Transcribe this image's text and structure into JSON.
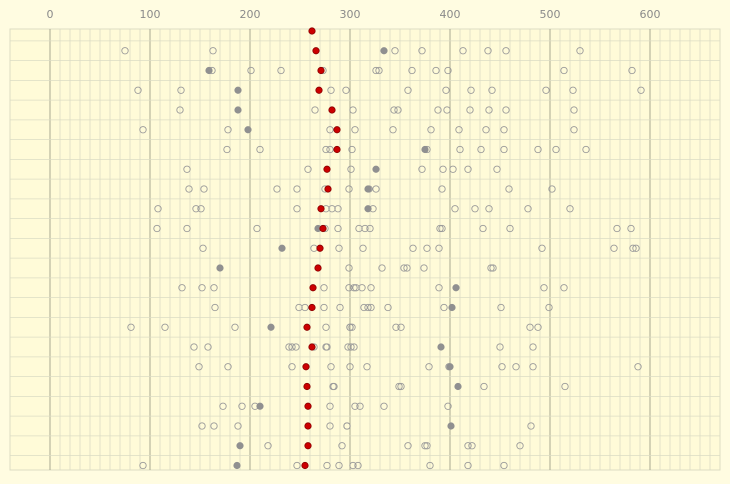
{
  "chart_data": {
    "type": "scatter",
    "title": "",
    "xlabel": "",
    "ylabel": "",
    "x_ticks": [
      "0",
      "100",
      "200",
      "300",
      "400",
      "500",
      "600"
    ],
    "xlim": [
      -8,
      678
    ],
    "grid": true,
    "row_count": 23,
    "colors": {
      "background": "#fffce1",
      "plot_background": "#fffbd8",
      "grid_minor": "#dcdcc4",
      "grid_major": "#a8a892",
      "tick_label": "#8a8a8a",
      "hollow_stroke": "#9a9a9a",
      "filled_gray": "#909090",
      "highlight": "#cc0000"
    },
    "series": [
      {
        "style": "highlight",
        "points": [
          [
            262,
            0
          ],
          [
            266,
            1
          ],
          [
            271,
            2
          ],
          [
            269,
            3
          ],
          [
            282,
            4
          ],
          [
            287,
            5
          ],
          [
            287,
            6
          ],
          [
            277,
            7
          ],
          [
            278,
            8
          ],
          [
            271,
            9
          ],
          [
            273,
            10
          ],
          [
            270,
            11
          ],
          [
            268,
            12
          ],
          [
            263,
            13
          ],
          [
            262,
            14
          ],
          [
            257,
            15
          ],
          [
            262,
            16
          ],
          [
            256,
            17
          ],
          [
            257,
            18
          ],
          [
            258,
            19
          ],
          [
            258,
            20
          ],
          [
            258,
            21
          ],
          [
            255,
            22
          ]
        ]
      },
      {
        "style": "gray",
        "points": [
          [
            334,
            1
          ],
          [
            159,
            2
          ],
          [
            188,
            3
          ],
          [
            188,
            4
          ],
          [
            198,
            5
          ],
          [
            375,
            6
          ],
          [
            326,
            7
          ],
          [
            318,
            8
          ],
          [
            318,
            9
          ],
          [
            268,
            10
          ],
          [
            232,
            11
          ],
          [
            170,
            12
          ],
          [
            406,
            13
          ],
          [
            402,
            14
          ],
          [
            221,
            15
          ],
          [
            391,
            16
          ],
          [
            400,
            17
          ],
          [
            408,
            18
          ],
          [
            210,
            19
          ],
          [
            401,
            20
          ],
          [
            190,
            21
          ],
          [
            187,
            22
          ]
        ]
      },
      {
        "style": "hollow",
        "points": [
          [
            75,
            1
          ],
          [
            163,
            1
          ],
          [
            345,
            1
          ],
          [
            372,
            1
          ],
          [
            413,
            1
          ],
          [
            438,
            1
          ],
          [
            456,
            1
          ],
          [
            530,
            1
          ],
          [
            162,
            2
          ],
          [
            201,
            2
          ],
          [
            231,
            2
          ],
          [
            273,
            2
          ],
          [
            326,
            2
          ],
          [
            329,
            2
          ],
          [
            362,
            2
          ],
          [
            386,
            2
          ],
          [
            398,
            2
          ],
          [
            514,
            2
          ],
          [
            582,
            2
          ],
          [
            88,
            3
          ],
          [
            131,
            3
          ],
          [
            281,
            3
          ],
          [
            296,
            3
          ],
          [
            358,
            3
          ],
          [
            396,
            3
          ],
          [
            421,
            3
          ],
          [
            442,
            3
          ],
          [
            496,
            3
          ],
          [
            523,
            3
          ],
          [
            591,
            3
          ],
          [
            130,
            4
          ],
          [
            265,
            4
          ],
          [
            303,
            4
          ],
          [
            344,
            4
          ],
          [
            348,
            4
          ],
          [
            388,
            4
          ],
          [
            397,
            4
          ],
          [
            420,
            4
          ],
          [
            439,
            4
          ],
          [
            456,
            4
          ],
          [
            524,
            4
          ],
          [
            93,
            5
          ],
          [
            178,
            5
          ],
          [
            280,
            5
          ],
          [
            305,
            5
          ],
          [
            343,
            5
          ],
          [
            381,
            5
          ],
          [
            409,
            5
          ],
          [
            436,
            5
          ],
          [
            454,
            5
          ],
          [
            524,
            5
          ],
          [
            177,
            6
          ],
          [
            210,
            6
          ],
          [
            276,
            6
          ],
          [
            280,
            6
          ],
          [
            302,
            6
          ],
          [
            377,
            6
          ],
          [
            410,
            6
          ],
          [
            431,
            6
          ],
          [
            454,
            6
          ],
          [
            488,
            6
          ],
          [
            506,
            6
          ],
          [
            536,
            6
          ],
          [
            137,
            7
          ],
          [
            258,
            7
          ],
          [
            301,
            7
          ],
          [
            372,
            7
          ],
          [
            393,
            7
          ],
          [
            403,
            7
          ],
          [
            418,
            7
          ],
          [
            447,
            7
          ],
          [
            139,
            8
          ],
          [
            154,
            8
          ],
          [
            227,
            8
          ],
          [
            247,
            8
          ],
          [
            275,
            8
          ],
          [
            299,
            8
          ],
          [
            319,
            8
          ],
          [
            326,
            8
          ],
          [
            392,
            8
          ],
          [
            459,
            8
          ],
          [
            502,
            8
          ],
          [
            108,
            9
          ],
          [
            146,
            9
          ],
          [
            151,
            9
          ],
          [
            247,
            9
          ],
          [
            276,
            9
          ],
          [
            282,
            9
          ],
          [
            288,
            9
          ],
          [
            323,
            9
          ],
          [
            405,
            9
          ],
          [
            425,
            9
          ],
          [
            439,
            9
          ],
          [
            478,
            9
          ],
          [
            520,
            9
          ],
          [
            107,
            10
          ],
          [
            137,
            10
          ],
          [
            207,
            10
          ],
          [
            275,
            10
          ],
          [
            288,
            10
          ],
          [
            309,
            10
          ],
          [
            315,
            10
          ],
          [
            320,
            10
          ],
          [
            390,
            10
          ],
          [
            392,
            10
          ],
          [
            433,
            10
          ],
          [
            460,
            10
          ],
          [
            567,
            10
          ],
          [
            581,
            10
          ],
          [
            153,
            11
          ],
          [
            264,
            11
          ],
          [
            289,
            11
          ],
          [
            313,
            11
          ],
          [
            363,
            11
          ],
          [
            377,
            11
          ],
          [
            389,
            11
          ],
          [
            492,
            11
          ],
          [
            564,
            11
          ],
          [
            583,
            11
          ],
          [
            586,
            11
          ],
          [
            299,
            12
          ],
          [
            332,
            12
          ],
          [
            354,
            12
          ],
          [
            357,
            12
          ],
          [
            374,
            12
          ],
          [
            441,
            12
          ],
          [
            443,
            12
          ],
          [
            132,
            13
          ],
          [
            152,
            13
          ],
          [
            164,
            13
          ],
          [
            274,
            13
          ],
          [
            299,
            13
          ],
          [
            304,
            13
          ],
          [
            306,
            13
          ],
          [
            312,
            13
          ],
          [
            321,
            13
          ],
          [
            389,
            13
          ],
          [
            494,
            13
          ],
          [
            514,
            13
          ],
          [
            165,
            14
          ],
          [
            249,
            14
          ],
          [
            255,
            14
          ],
          [
            274,
            14
          ],
          [
            290,
            14
          ],
          [
            314,
            14
          ],
          [
            318,
            14
          ],
          [
            321,
            14
          ],
          [
            338,
            14
          ],
          [
            394,
            14
          ],
          [
            451,
            14
          ],
          [
            499,
            14
          ],
          [
            81,
            15
          ],
          [
            115,
            15
          ],
          [
            185,
            15
          ],
          [
            276,
            15
          ],
          [
            300,
            15
          ],
          [
            300,
            15
          ],
          [
            302,
            15
          ],
          [
            346,
            15
          ],
          [
            351,
            15
          ],
          [
            480,
            15
          ],
          [
            488,
            15
          ],
          [
            144,
            16
          ],
          [
            158,
            16
          ],
          [
            239,
            16
          ],
          [
            242,
            16
          ],
          [
            246,
            16
          ],
          [
            264,
            16
          ],
          [
            276,
            16
          ],
          [
            277,
            16
          ],
          [
            298,
            16
          ],
          [
            301,
            16
          ],
          [
            304,
            16
          ],
          [
            450,
            16
          ],
          [
            483,
            16
          ],
          [
            149,
            17
          ],
          [
            178,
            17
          ],
          [
            242,
            17
          ],
          [
            281,
            17
          ],
          [
            300,
            17
          ],
          [
            317,
            17
          ],
          [
            379,
            17
          ],
          [
            399,
            17
          ],
          [
            452,
            17
          ],
          [
            466,
            17
          ],
          [
            483,
            17
          ],
          [
            588,
            17
          ],
          [
            283,
            18
          ],
          [
            284,
            18
          ],
          [
            349,
            18
          ],
          [
            351,
            18
          ],
          [
            434,
            18
          ],
          [
            515,
            18
          ],
          [
            173,
            19
          ],
          [
            192,
            19
          ],
          [
            205,
            19
          ],
          [
            280,
            19
          ],
          [
            305,
            19
          ],
          [
            310,
            19
          ],
          [
            334,
            19
          ],
          [
            398,
            19
          ],
          [
            152,
            20
          ],
          [
            164,
            20
          ],
          [
            188,
            20
          ],
          [
            280,
            20
          ],
          [
            297,
            20
          ],
          [
            297,
            20
          ],
          [
            481,
            20
          ],
          [
            218,
            21
          ],
          [
            292,
            21
          ],
          [
            358,
            21
          ],
          [
            375,
            21
          ],
          [
            377,
            21
          ],
          [
            418,
            21
          ],
          [
            422,
            21
          ],
          [
            470,
            21
          ],
          [
            93,
            22
          ],
          [
            247,
            22
          ],
          [
            277,
            22
          ],
          [
            289,
            22
          ],
          [
            303,
            22
          ],
          [
            308,
            22
          ],
          [
            380,
            22
          ],
          [
            418,
            22
          ],
          [
            454,
            22
          ]
        ]
      }
    ]
  }
}
